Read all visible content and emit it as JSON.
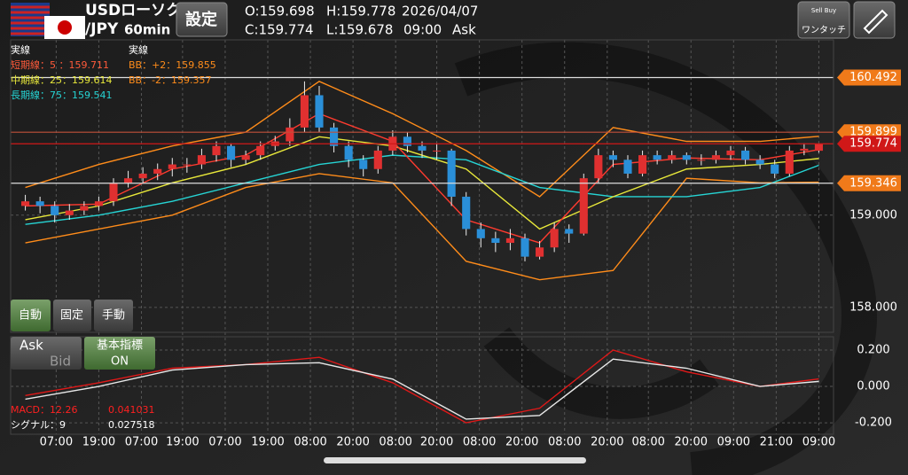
{
  "header": {
    "pair_top": "USDローソク",
    "pair_bottom": "/JPY",
    "timeframe": "60min",
    "settings": "設定",
    "open": "O:159.698",
    "high": "H:159.778",
    "date": "2026/04/07",
    "close": "C:159.774",
    "low": "L:159.678",
    "time": "09:00",
    "side": "Ask",
    "one_touch": "ワンタッチ",
    "sell_buy": "Sell Buy"
  },
  "indicators": {
    "solid_left": "実線",
    "solid_right": "実線",
    "short_ma": "短期線：5 ：159.711",
    "bb_upper": "BB：+2：159.855",
    "mid_ma": "中期線：25：159.614",
    "bb_lower": "BB：-2：159.357",
    "long_ma": "長期線：75：159.541",
    "macd": "MACD：12.26",
    "macd_value": "0.041031",
    "signal": "シグナル：9",
    "signal_value": "0.027518"
  },
  "buttons": {
    "auto": "自動",
    "fixed": "固定",
    "manual": "手動",
    "ask": "Ask",
    "bid": "Bid",
    "basic": "基本指標",
    "on": "ON"
  },
  "chart_data": [
    {
      "type": "candlestick",
      "up_color": "#e03030",
      "down_color": "#2a8fd8",
      "candles": [
        [
          159.1,
          159.22,
          159.05,
          159.15
        ],
        [
          159.15,
          159.2,
          159.02,
          159.1
        ],
        [
          159.1,
          159.15,
          158.92,
          159.0
        ],
        [
          159.0,
          159.12,
          158.95,
          159.05
        ],
        [
          159.05,
          159.15,
          159.0,
          159.1
        ],
        [
          159.1,
          159.2,
          159.05,
          159.15
        ],
        [
          159.15,
          159.4,
          159.1,
          159.35
        ],
        [
          159.35,
          159.48,
          159.3,
          159.4
        ],
        [
          159.4,
          159.52,
          159.35,
          159.45
        ],
        [
          159.45,
          159.56,
          159.38,
          159.5
        ],
        [
          159.5,
          159.62,
          159.42,
          159.55
        ],
        [
          159.55,
          159.62,
          159.46,
          159.55
        ],
        [
          159.55,
          159.72,
          159.5,
          159.65
        ],
        [
          159.65,
          159.8,
          159.58,
          159.75
        ],
        [
          159.75,
          159.78,
          159.52,
          159.6
        ],
        [
          159.6,
          159.7,
          159.55,
          159.65
        ],
        [
          159.65,
          159.8,
          159.6,
          159.75
        ],
        [
          159.75,
          159.86,
          159.7,
          159.8
        ],
        [
          159.8,
          160.05,
          159.75,
          159.95
        ],
        [
          159.95,
          160.45,
          159.9,
          160.3
        ],
        [
          160.3,
          160.4,
          159.9,
          159.95
        ],
        [
          159.95,
          160.0,
          159.68,
          159.75
        ],
        [
          159.75,
          159.8,
          159.52,
          159.6
        ],
        [
          159.6,
          159.65,
          159.42,
          159.5
        ],
        [
          159.5,
          159.75,
          159.45,
          159.7
        ],
        [
          159.7,
          159.92,
          159.65,
          159.85
        ],
        [
          159.85,
          159.9,
          159.68,
          159.75
        ],
        [
          159.75,
          159.8,
          159.62,
          159.7
        ],
        [
          159.7,
          159.78,
          159.6,
          159.7
        ],
        [
          159.7,
          159.72,
          159.1,
          159.2
        ],
        [
          159.2,
          159.25,
          158.78,
          158.85
        ],
        [
          158.85,
          158.92,
          158.65,
          158.75
        ],
        [
          158.75,
          158.82,
          158.6,
          158.7
        ],
        [
          158.7,
          158.85,
          158.62,
          158.75
        ],
        [
          158.75,
          158.8,
          158.5,
          158.55
        ],
        [
          158.55,
          158.72,
          158.52,
          158.65
        ],
        [
          158.65,
          158.92,
          158.6,
          158.85
        ],
        [
          158.85,
          158.9,
          158.7,
          158.8
        ],
        [
          158.8,
          159.45,
          158.78,
          159.4
        ],
        [
          159.4,
          159.72,
          159.35,
          159.65
        ],
        [
          159.65,
          159.7,
          159.52,
          159.6
        ],
        [
          159.6,
          159.65,
          159.4,
          159.45
        ],
        [
          159.45,
          159.7,
          159.42,
          159.65
        ],
        [
          159.65,
          159.7,
          159.55,
          159.6
        ],
        [
          159.6,
          159.7,
          159.56,
          159.65
        ],
        [
          159.65,
          159.68,
          159.55,
          159.6
        ],
        [
          159.6,
          159.66,
          159.54,
          159.6
        ],
        [
          159.6,
          159.7,
          159.56,
          159.65
        ],
        [
          159.65,
          159.75,
          159.6,
          159.7
        ],
        [
          159.7,
          159.74,
          159.55,
          159.6
        ],
        [
          159.6,
          159.65,
          159.5,
          159.55
        ],
        [
          159.55,
          159.6,
          159.4,
          159.45
        ],
        [
          159.45,
          159.75,
          159.42,
          159.7
        ],
        [
          159.7,
          159.78,
          159.65,
          159.72
        ],
        [
          159.698,
          159.778,
          159.678,
          159.774
        ]
      ],
      "lines": [
        {
          "color": "#ff8c1a",
          "x": [
            0,
            5,
            10,
            15,
            20,
            25,
            30,
            35,
            40,
            45,
            50,
            54
          ],
          "values": [
            159.3,
            159.55,
            159.75,
            159.9,
            160.45,
            160.1,
            159.7,
            159.2,
            159.95,
            159.8,
            159.8,
            159.855
          ]
        },
        {
          "color": "#ff8c1a",
          "x": [
            0,
            5,
            10,
            15,
            20,
            25,
            30,
            35,
            40,
            45,
            50,
            54
          ],
          "values": [
            158.7,
            158.85,
            159.0,
            159.3,
            159.45,
            159.35,
            158.5,
            158.3,
            158.4,
            159.4,
            159.35,
            159.357
          ]
        },
        {
          "color": "#26d4d4",
          "x": [
            0,
            5,
            10,
            15,
            20,
            25,
            30,
            35,
            40,
            45,
            50,
            54
          ],
          "values": [
            158.9,
            159.0,
            159.15,
            159.35,
            159.55,
            159.65,
            159.6,
            159.3,
            159.2,
            159.2,
            159.3,
            159.541
          ]
        },
        {
          "color": "#e8e83a",
          "x": [
            0,
            5,
            10,
            15,
            20,
            25,
            30,
            35,
            40,
            45,
            50,
            54
          ],
          "values": [
            158.95,
            159.1,
            159.35,
            159.55,
            159.85,
            159.75,
            159.5,
            158.85,
            159.2,
            159.5,
            159.55,
            159.614
          ]
        },
        {
          "color": "#ff3b2f",
          "x": [
            0,
            5,
            10,
            15,
            20,
            25,
            30,
            35,
            40,
            45,
            50,
            54
          ],
          "values": [
            159.1,
            159.12,
            159.5,
            159.65,
            160.1,
            159.8,
            158.95,
            158.7,
            159.55,
            159.62,
            159.6,
            159.711
          ]
        }
      ],
      "levels": [
        {
          "value": 160.492,
          "color": "#dddddd",
          "box": "#f07a1a"
        },
        {
          "value": 159.899,
          "color": "#c0503a",
          "box": "#f07a1a"
        },
        {
          "value": 159.774,
          "color": "#d01818",
          "box": "#d01818"
        },
        {
          "value": 159.346,
          "color": "#dddddd",
          "box": "#f07a1a"
        }
      ],
      "xlim": [
        -1,
        55
      ],
      "ylim": [
        157.73,
        160.9
      ],
      "yticks": [
        {
          "value": 159,
          "label": "159.000"
        },
        {
          "value": 158,
          "label": "158.000"
        }
      ],
      "xticks": [
        {
          "value": 2.1,
          "label": "07:00"
        },
        {
          "value": 5.0,
          "label": "19:00"
        },
        {
          "value": 7.9,
          "label": "07:00"
        },
        {
          "value": 10.7,
          "label": "19:00"
        },
        {
          "value": 13.6,
          "label": "07:00"
        },
        {
          "value": 16.5,
          "label": "19:00"
        },
        {
          "value": 19.4,
          "label": "08:00"
        },
        {
          "value": 22.3,
          "label": "20:00"
        },
        {
          "value": 25.2,
          "label": "08:00"
        },
        {
          "value": 28.0,
          "label": "20:00"
        },
        {
          "value": 30.9,
          "label": "08:00"
        },
        {
          "value": 33.8,
          "label": "20:00"
        },
        {
          "value": 36.7,
          "label": "08:00"
        },
        {
          "value": 39.6,
          "label": "20:00"
        },
        {
          "value": 42.4,
          "label": "08:00"
        },
        {
          "value": 45.3,
          "label": "20:00"
        },
        {
          "value": 48.2,
          "label": "09:00"
        },
        {
          "value": 51.1,
          "label": "21:00"
        },
        {
          "value": 54.0,
          "label": "09:00"
        }
      ],
      "grid": true
    },
    {
      "type": "line",
      "x": [
        0,
        5,
        10,
        15,
        20,
        25,
        30,
        35,
        40,
        45,
        50,
        54
      ],
      "series": [
        {
          "color": "#e01818",
          "values": [
            -0.05,
            0.02,
            0.1,
            0.12,
            0.16,
            0.02,
            -0.2,
            -0.12,
            0.2,
            0.08,
            0.0,
            0.041
          ]
        },
        {
          "color": "#e8e8e8",
          "values": [
            -0.07,
            0.0,
            0.09,
            0.12,
            0.13,
            0.04,
            -0.18,
            -0.16,
            0.15,
            0.1,
            0.0,
            0.0275
          ]
        }
      ],
      "xlim": [
        -1,
        55
      ],
      "ylim": [
        -0.263,
        0.273
      ],
      "yticks": [
        {
          "value": 0.2,
          "label": "0.200"
        },
        {
          "value": 0,
          "label": "0.000"
        },
        {
          "value": -0.2,
          "label": "-0.200"
        }
      ],
      "grid": true
    }
  ]
}
